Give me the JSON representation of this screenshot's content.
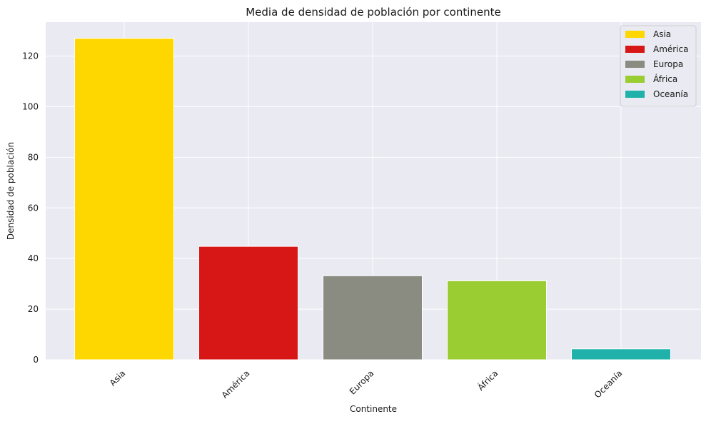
{
  "chart_data": {
    "type": "bar",
    "title": "Media de densidad de población por continente",
    "xlabel": "Continente",
    "ylabel": "Densidad de población",
    "categories": [
      "Asia",
      "América",
      "Europa",
      "África",
      "Oceanía"
    ],
    "values": [
      127.0,
      44.8,
      33.2,
      31.2,
      4.3
    ],
    "colors": [
      "#ffd700",
      "#d71616",
      "#8a8c82",
      "#9acd32",
      "#20b2aa"
    ],
    "ylim": [
      0,
      133.4
    ],
    "yticks": [
      0,
      20,
      40,
      60,
      80,
      100,
      120
    ],
    "grid": true,
    "background": "#eaeaf2",
    "legend": {
      "position": "top-right",
      "entries": [
        "Asia",
        "América",
        "Europa",
        "África",
        "Oceanía"
      ]
    }
  }
}
